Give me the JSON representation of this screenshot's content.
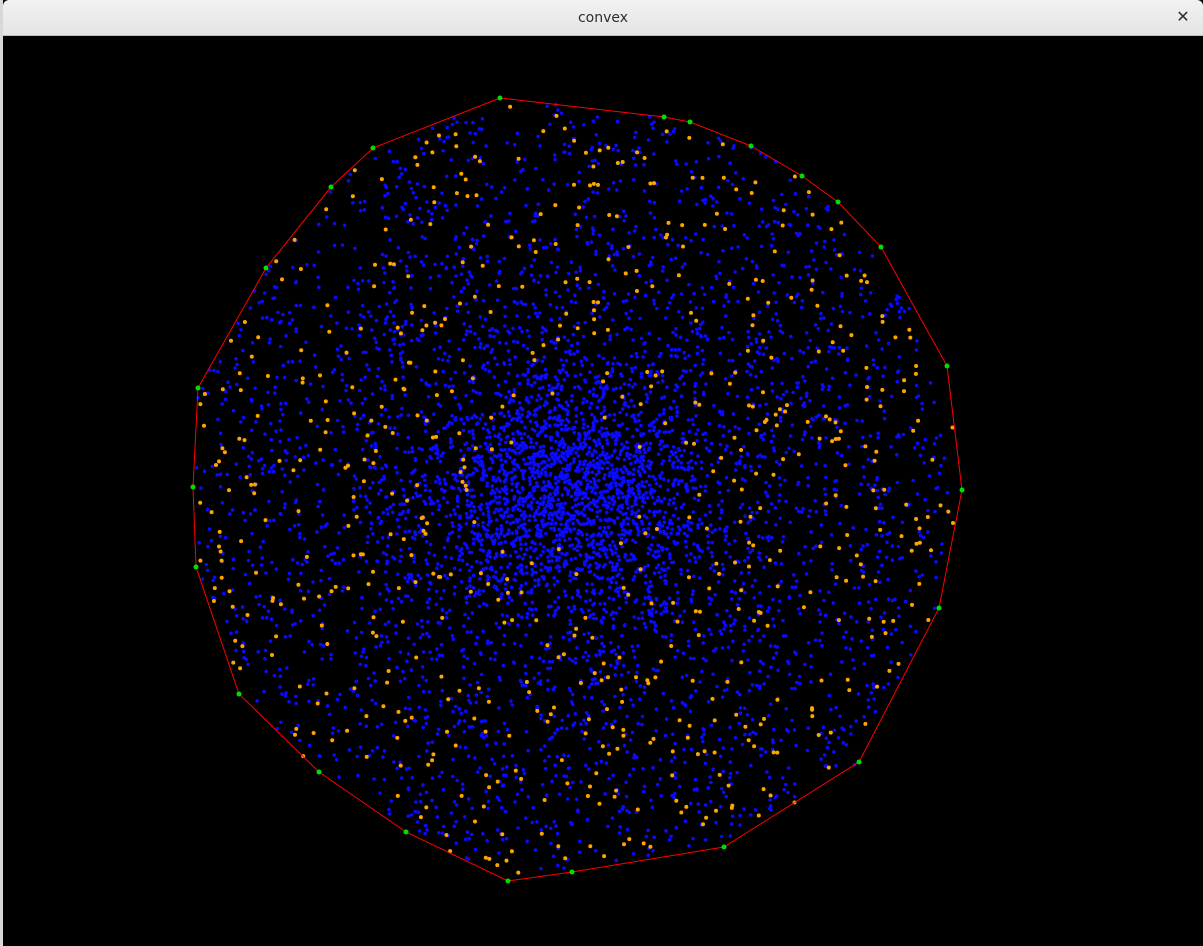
{
  "window": {
    "title": "convex",
    "close_glyph": "✕",
    "close_icon": "close-icon"
  },
  "plot": {
    "background_color": "#000000",
    "colors": {
      "interior_points": "#0a0aff",
      "secondary_points": "#ffa500",
      "hull_vertices": "#00e000",
      "hull_edges": "#ff0000"
    }
  }
}
